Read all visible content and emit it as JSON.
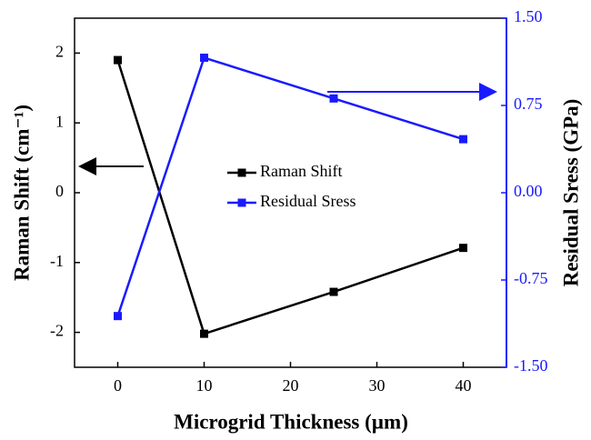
{
  "chart_data": {
    "type": "line",
    "xlabel": "Microgrid Thickness (µm)",
    "ylabel": "Raman Shift (cm⁻¹)",
    "y2label": "Residual Sress (GPa)",
    "xlim": [
      -5,
      45
    ],
    "xticks": [
      0,
      10,
      20,
      30,
      40
    ],
    "ylim": [
      -2.5,
      2.5
    ],
    "yticks": [
      2,
      1,
      0,
      -1,
      -2
    ],
    "y2lim": [
      -1.5,
      1.5
    ],
    "y2ticks": [
      {
        "value": 1.5,
        "label": "1.50"
      },
      {
        "value": 0.75,
        "label": "0.75"
      },
      {
        "value": 0,
        "label": "0.00"
      },
      {
        "value": -0.75,
        "label": "-0.75"
      },
      {
        "value": -1.5,
        "label": "-1.50"
      }
    ],
    "y2color": "#1a1aff",
    "series": [
      {
        "name": "Raman Shift",
        "color": "#000000",
        "x": [
          0,
          10,
          25,
          40
        ],
        "values": [
          1.9,
          -2.02,
          -1.42,
          -0.79
        ]
      },
      {
        "name": "Residual Sress",
        "color": "#1a1aff",
        "axis": "y2",
        "x": [
          0,
          10,
          25,
          40
        ],
        "values": [
          -1.06,
          1.16,
          0.81,
          0.46
        ]
      }
    ]
  }
}
